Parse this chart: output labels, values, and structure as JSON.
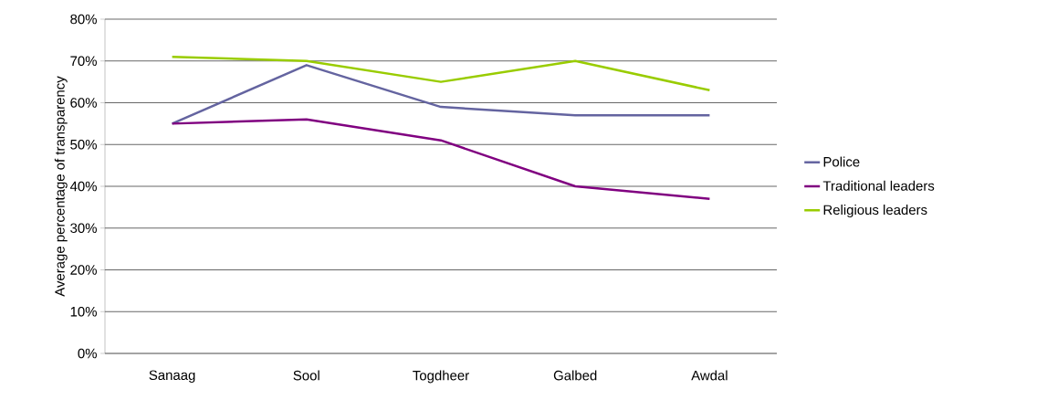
{
  "chart_data": {
    "type": "line",
    "ylabel": "Average percentage of transparency",
    "categories": [
      "Sanaag",
      "Sool",
      "Togdheer",
      "Galbed",
      "Awdal"
    ],
    "series": [
      {
        "name": "Police",
        "color": "#6464a0",
        "values": [
          55,
          69,
          59,
          57,
          57
        ]
      },
      {
        "name": "Traditional leaders",
        "color": "#800080",
        "values": [
          55,
          56,
          51,
          40,
          37
        ]
      },
      {
        "name": "Religious leaders",
        "color": "#99cc00",
        "values": [
          71,
          70,
          65,
          70,
          63
        ]
      }
    ],
    "ylim": [
      0,
      80
    ],
    "yticks": [
      {
        "value": 0,
        "label": "0%"
      },
      {
        "value": 10,
        "label": "10%"
      },
      {
        "value": 20,
        "label": "20%"
      },
      {
        "value": 30,
        "label": "30%"
      },
      {
        "value": 40,
        "label": "40%"
      },
      {
        "value": 50,
        "label": "50%"
      },
      {
        "value": 60,
        "label": "60%"
      },
      {
        "value": 70,
        "label": "70%"
      },
      {
        "value": 80,
        "label": "80%"
      }
    ],
    "grid": "y",
    "legend": "right",
    "marker": "none",
    "line_style": "solid"
  }
}
